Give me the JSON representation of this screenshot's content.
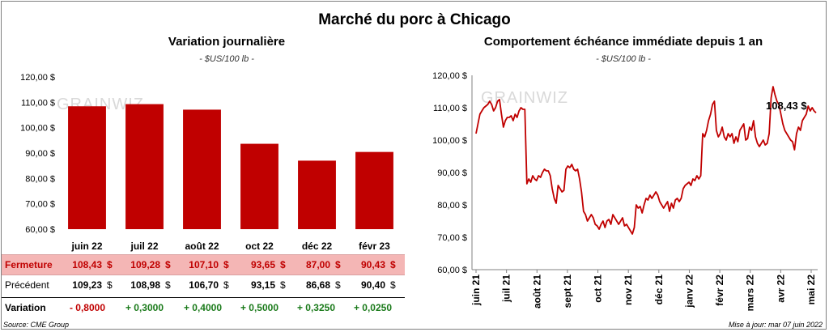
{
  "title": "Marché du porc à Chicago",
  "left_panel": {
    "title": "Variation  journalière",
    "subtitle": "- $US/100 lb -"
  },
  "right_panel": {
    "title": "Comportement  échéance immédiate depuis 1 an",
    "subtitle": "- $US/100 lb -",
    "last_value_label": "108,43 $"
  },
  "watermark": "GRAINWIZ",
  "table": {
    "fermeture_label": "Fermeture",
    "fermeture": [
      "108,43",
      "109,28",
      "107,10",
      "93,65",
      "87,00",
      "90,43"
    ],
    "precedent_label": "Précédent",
    "precedent": [
      "109,23",
      "108,98",
      "106,70",
      "93,15",
      "86,68",
      "90,40"
    ],
    "variation_label": "Variation",
    "variation": [
      "- 0,8000",
      "+ 0,3000",
      "+ 0,4000",
      "+ 0,5000",
      "+ 0,3250",
      "+ 0,0250"
    ],
    "unit": "$"
  },
  "footer": {
    "source": "Source: CME Group",
    "updated": "Mise à jour: mar 07 juin 2022"
  },
  "colors": {
    "bar": "#c00000",
    "line": "#c00000",
    "highlight_row": "#f4b6b5"
  },
  "chart_data": [
    {
      "type": "bar",
      "categories": [
        "juin 22",
        "juil 22",
        "août 22",
        "oct 22",
        "déc 22",
        "févr 23"
      ],
      "values": [
        108.43,
        109.28,
        107.1,
        93.65,
        87.0,
        90.43
      ],
      "ylim": [
        60,
        120
      ],
      "yticks": [
        "60,00 $",
        "70,00 $",
        "80,00 $",
        "90,00 $",
        "100,00 $",
        "110,00 $",
        "120,00 $"
      ],
      "grid": false
    },
    {
      "type": "line",
      "x_labels": [
        "juin 21",
        "juil 21",
        "août 21",
        "sept 21",
        "oct 21",
        "nov 21",
        "déc 21",
        "janv 22",
        "févr 22",
        "mars 22",
        "avr 22",
        "mai 22"
      ],
      "ylim": [
        60,
        120
      ],
      "yticks": [
        "60,00 $",
        "70,00 $",
        "80,00 $",
        "90,00 $",
        "100,00 $",
        "110,00 $",
        "120,00 $"
      ],
      "values": [
        102,
        105,
        108,
        109,
        110,
        110.5,
        111,
        112,
        111,
        109,
        110,
        112,
        112.5,
        108,
        104,
        106,
        107,
        107,
        107.5,
        106,
        108,
        107,
        109,
        110,
        109.5,
        109.5,
        86.5,
        88,
        87,
        89,
        88,
        87.5,
        89,
        88.5,
        90,
        91,
        90.5,
        90.5,
        89,
        85,
        82,
        80.5,
        86,
        85,
        84,
        84.5,
        91,
        92,
        91.5,
        92.5,
        91,
        90.5,
        91,
        88,
        84,
        78,
        77,
        75,
        76,
        77,
        76,
        74,
        73.5,
        72.5,
        74,
        75,
        73,
        75,
        75.5,
        74,
        77,
        76,
        75,
        74,
        75,
        76,
        73.5,
        74,
        73,
        72,
        71,
        73,
        80,
        79,
        79.5,
        77.5,
        80,
        82,
        81.5,
        83,
        82,
        83,
        84,
        83,
        81,
        80,
        79,
        80,
        81,
        78,
        80.5,
        79,
        81.5,
        82,
        81,
        82,
        85,
        86,
        86.5,
        87,
        86,
        88,
        87.5,
        89,
        88,
        89,
        102,
        101,
        103,
        106,
        108,
        111,
        112,
        103,
        101,
        102,
        104,
        101,
        100,
        102,
        101,
        102,
        99,
        101,
        99.5,
        103,
        104,
        105,
        100,
        100.5,
        104,
        103,
        106,
        101,
        99,
        98,
        99,
        100,
        98.5,
        99,
        102,
        113,
        116.5,
        114,
        112,
        111,
        108,
        105,
        103,
        102,
        101,
        100,
        99.5,
        97,
        102,
        104,
        103,
        106,
        107,
        108,
        110.5,
        109,
        110,
        109,
        108.43
      ]
    }
  ]
}
